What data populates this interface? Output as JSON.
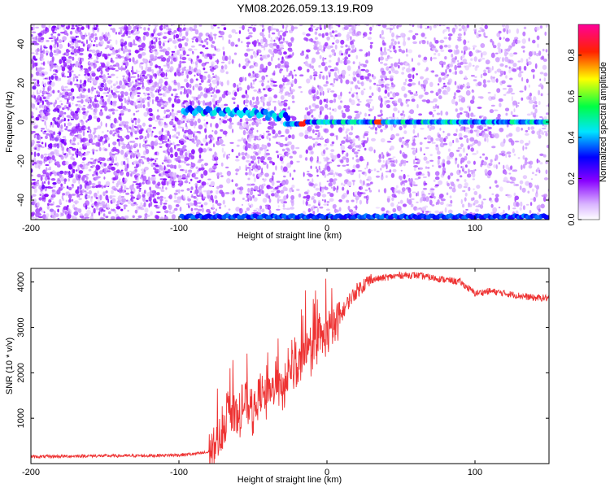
{
  "chart_data": [
    {
      "type": "heatmap",
      "title": "YM08.2026.059.13.19.R09",
      "xlabel": "Height of straight line (km)",
      "ylabel": "Frequency (Hz)",
      "xlim": [
        -200,
        150
      ],
      "ylim": [
        -50,
        50
      ],
      "x_ticks": [
        -200,
        -100,
        0,
        100
      ],
      "y_ticks": [
        40,
        20,
        0,
        -20,
        -40
      ],
      "grid": false,
      "colorbar": {
        "label": "Normalized spectral amplitude",
        "range": [
          0,
          0.95
        ],
        "ticks": [
          0,
          0.2,
          0.4,
          0.6,
          0.8
        ],
        "colors": [
          "#ffffff",
          "#d9b3ff",
          "#8800ff",
          "#0000ff",
          "#00e5ff",
          "#00ff44",
          "#ffff00",
          "#ff2200",
          "#ff0099"
        ]
      },
      "features": [
        {
          "name": "",
          "x_range": [
            -95,
            150
          ],
          "frequency_hz": 0
        },
        {
          "name": "",
          "x_range": [
            -100,
            150
          ],
          "frequency_hz": -49
        }
      ]
    },
    {
      "type": "line",
      "xlabel": "Height of straight line (km)",
      "ylabel": "SNR (10 * v/v)",
      "xlim": [
        -200,
        150
      ],
      "ylim": [
        0,
        4300
      ],
      "x_ticks": [
        -200,
        -100,
        0,
        100
      ],
      "y_ticks": [
        1000,
        2000,
        3000,
        4000
      ],
      "grid": false,
      "series": [
        {
          "name": "",
          "color": "#ee3333",
          "x": [
            -200,
            -180,
            -160,
            -140,
            -120,
            -100,
            -90,
            -80,
            -75,
            -70,
            -65,
            -60,
            -55,
            -50,
            -45,
            -40,
            -35,
            -30,
            -25,
            -20,
            -15,
            -10,
            -5,
            0,
            5,
            10,
            15,
            20,
            25,
            30,
            40,
            50,
            60,
            70,
            80,
            90,
            100,
            110,
            120,
            130,
            140,
            150
          ],
          "values": [
            150,
            160,
            170,
            170,
            175,
            190,
            210,
            250,
            400,
            800,
            1200,
            900,
            1400,
            1000,
            1600,
            1300,
            1800,
            1500,
            2100,
            2000,
            2600,
            2300,
            2700,
            2800,
            3000,
            3300,
            3600,
            3800,
            3950,
            4050,
            4100,
            4150,
            4150,
            4100,
            4050,
            4000,
            3750,
            3800,
            3750,
            3700,
            3650,
            3650
          ]
        }
      ]
    }
  ]
}
